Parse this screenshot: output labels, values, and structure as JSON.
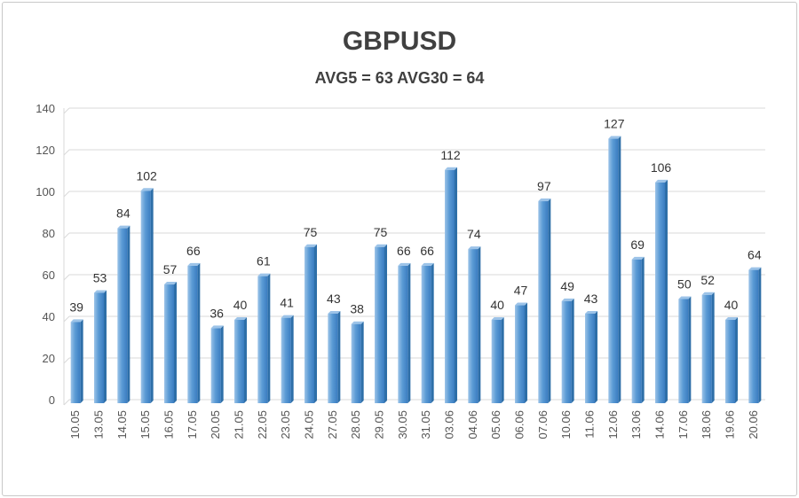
{
  "chart_data": {
    "type": "bar",
    "title": "GBPUSD",
    "subtitle": "AVG5 = 63 AVG30 = 64",
    "xlabel": "",
    "ylabel": "",
    "ylim": [
      0,
      140
    ],
    "yticks": [
      0,
      20,
      40,
      60,
      80,
      100,
      120,
      140
    ],
    "grid": true,
    "legend": "none",
    "categories": [
      "10.05",
      "13.05",
      "14.05",
      "15.05",
      "16.05",
      "17.05",
      "20.05",
      "21.05",
      "22.05",
      "23.05",
      "24.05",
      "27.05",
      "28.05",
      "29.05",
      "30.05",
      "31.05",
      "03.06",
      "04.06",
      "05.06",
      "06.06",
      "07.06",
      "10.06",
      "11.06",
      "12.06",
      "13.06",
      "14.06",
      "17.06",
      "18.06",
      "19.06",
      "20.06"
    ],
    "values": [
      39,
      53,
      84,
      102,
      57,
      66,
      36,
      40,
      61,
      41,
      75,
      43,
      38,
      75,
      66,
      66,
      112,
      74,
      40,
      47,
      97,
      49,
      43,
      127,
      69,
      106,
      50,
      52,
      40,
      64
    ],
    "colors": {
      "bar": "#5b9bd5",
      "bar_light": "#9cc3e8",
      "bar_dark": "#2e6fa8",
      "grid": "#d9d9d9",
      "text": "#404040"
    }
  }
}
